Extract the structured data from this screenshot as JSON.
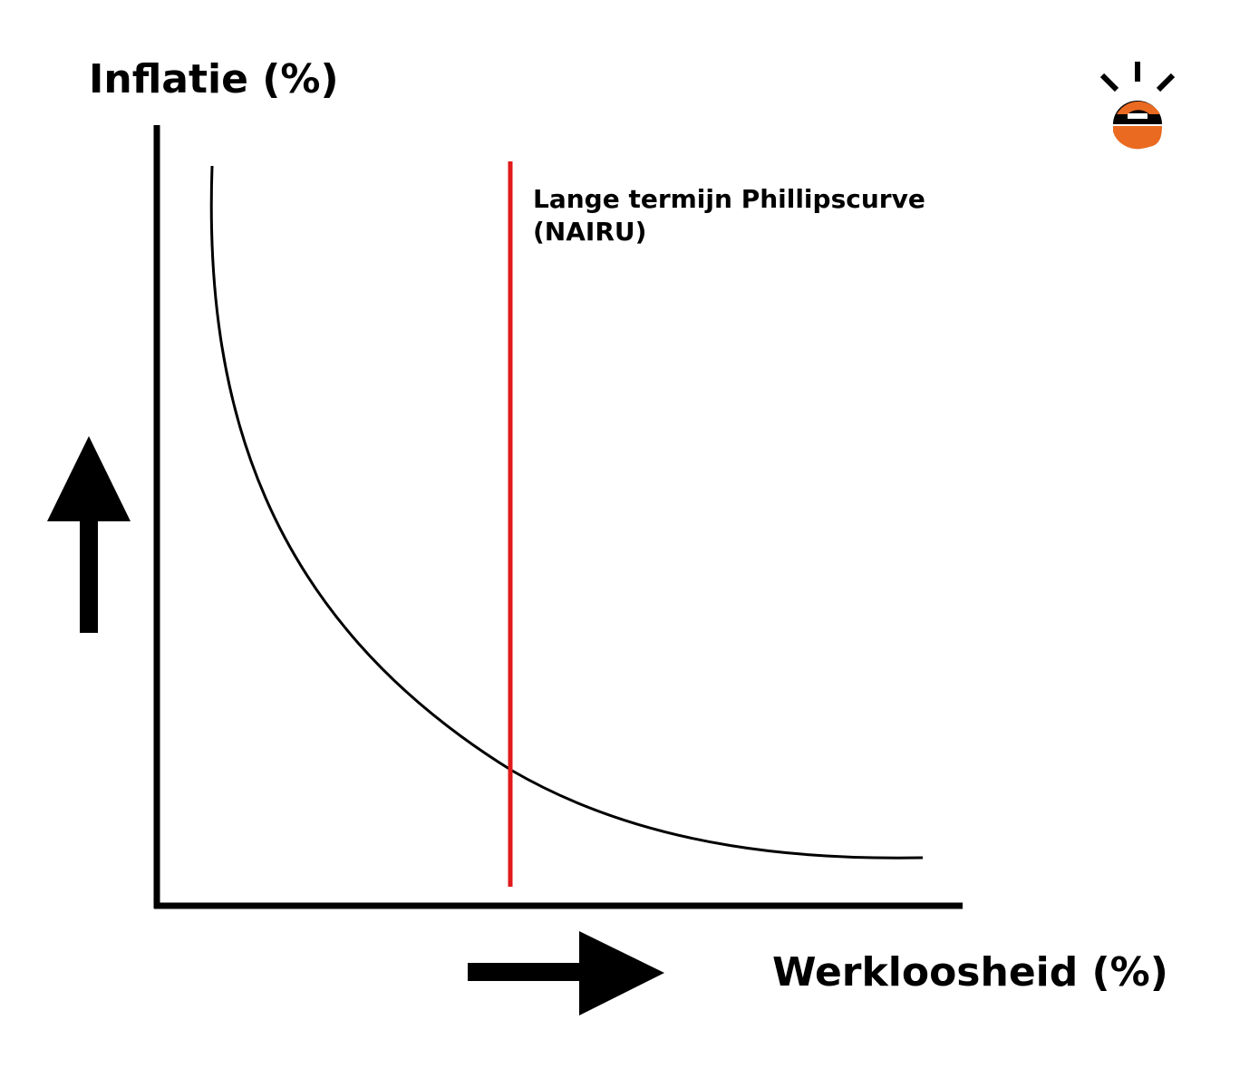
{
  "diagram": {
    "y_axis_title": "Inflatie (%)",
    "x_axis_title": "Werkloosheid (%)",
    "lrpc_label_line1": "Lange termijn Phillipscurve",
    "lrpc_label_line2": "(NAIRU)"
  },
  "colors": {
    "axis": "#000000",
    "short_run_curve": "#000000",
    "long_run_curve": "#e0191b",
    "logo_orange": "#ea6a21",
    "logo_rays": "#000000"
  },
  "icons": {
    "up_arrow": "arrow-up-icon",
    "right_arrow": "arrow-right-icon",
    "logo": "logo-e-icon"
  }
}
